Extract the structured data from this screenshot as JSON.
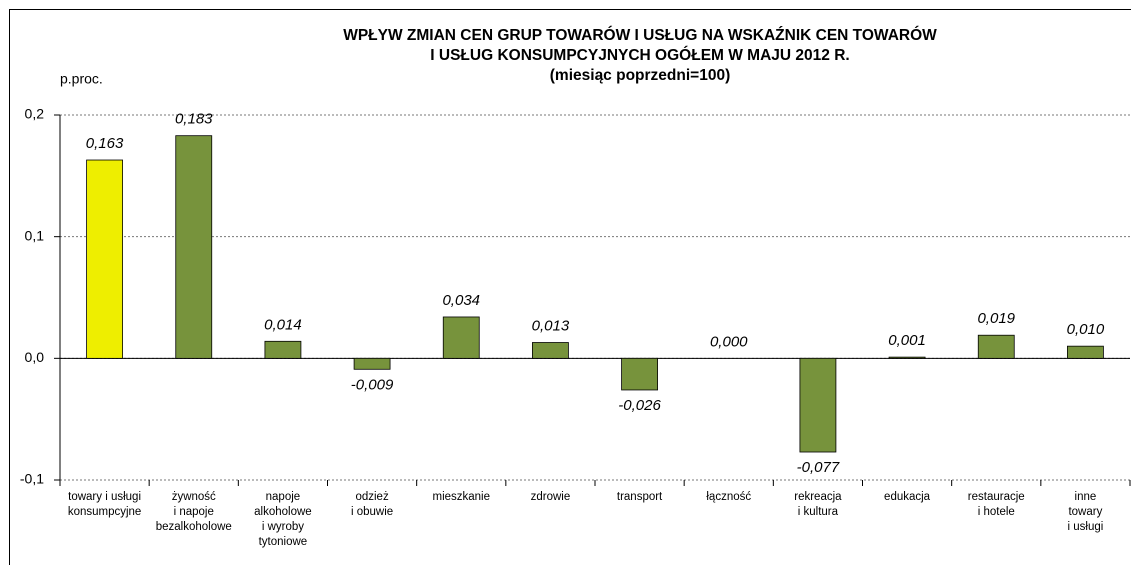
{
  "chart_data": {
    "type": "bar",
    "title": [
      "WPŁYW ZMIAN CEN  GRUP TOWARÓW I USŁUG NA WSKAŹNIK CEN TOWARÓW",
      "I USŁUG KONSUMPCYJNYCH OGÓŁEM W MAJU 2012 R.",
      "(miesiąc poprzedni=100)"
    ],
    "y_axis_label": "p.proc.",
    "categories": [
      [
        "towary i usługi",
        "konsumpcyjne"
      ],
      [
        "żywność",
        "i napoje",
        "bezalkoholowe"
      ],
      [
        "napoje",
        "alkoholowe",
        "i wyroby",
        "tytoniowe"
      ],
      [
        "odzież",
        "i obuwie"
      ],
      [
        "mieszkanie"
      ],
      [
        "zdrowie"
      ],
      [
        "transport"
      ],
      [
        "łączność"
      ],
      [
        "rekreacja",
        "i kultura"
      ],
      [
        "edukacja"
      ],
      [
        "restauracje",
        "i hotele"
      ],
      [
        "inne",
        "towary",
        "i usługi"
      ]
    ],
    "values": [
      0.163,
      0.183,
      0.014,
      -0.009,
      0.034,
      0.013,
      -0.026,
      0.0,
      -0.077,
      0.001,
      0.019,
      0.01
    ],
    "value_labels": [
      "0,163",
      "0,183",
      "0,014",
      "-0,009",
      "0,034",
      "0,013",
      "-0,026",
      "0,000",
      "-0,077",
      "0,001",
      "0,019",
      "0,010"
    ],
    "colors": [
      "#eeee00",
      "#77933c",
      "#77933c",
      "#77933c",
      "#77933c",
      "#77933c",
      "#77933c",
      "#77933c",
      "#77933c",
      "#77933c",
      "#77933c",
      "#77933c"
    ],
    "ylim": [
      -0.1,
      0.2
    ],
    "yticks": [
      {
        "value": -0.1,
        "label": "-0,1"
      },
      {
        "value": 0.0,
        "label": "0,0"
      },
      {
        "value": 0.1,
        "label": "0,1"
      },
      {
        "value": 0.2,
        "label": "0,2"
      }
    ],
    "grid": true
  }
}
